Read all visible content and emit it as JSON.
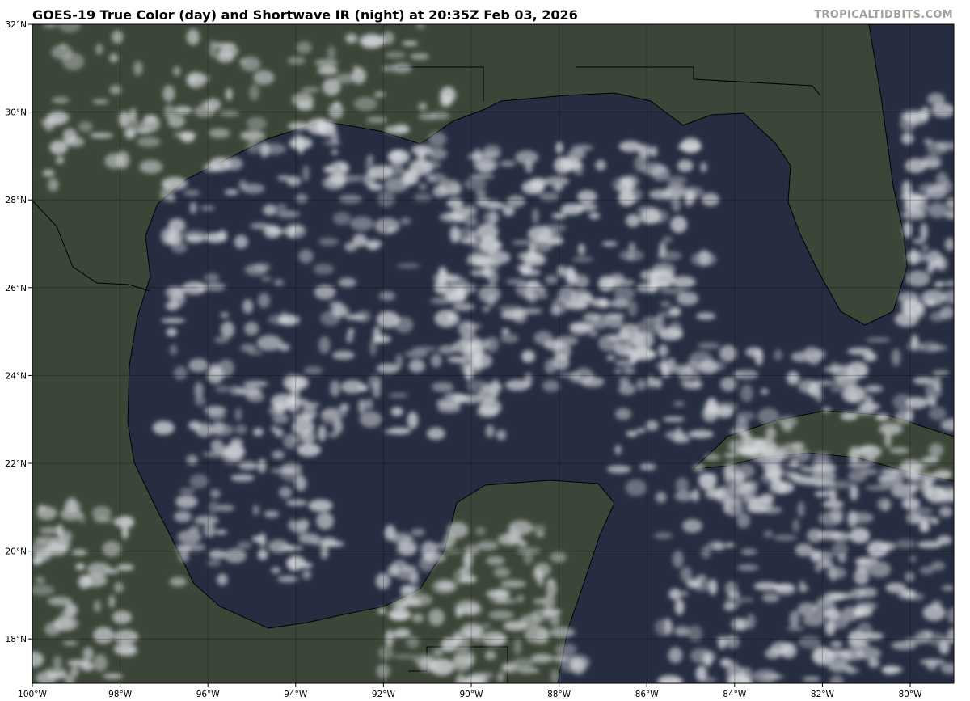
{
  "title": "GOES-19 True Color (day) and Shortwave IR (night) at 20:35Z Feb 03, 2026",
  "watermark": "TROPICALTIDBITS.COM",
  "map": {
    "projection": "plate-carree",
    "lon_range": [
      -100,
      -79
    ],
    "lat_range": [
      17,
      32
    ],
    "lon_ticks": [
      {
        "value": -100,
        "label": "100°W"
      },
      {
        "value": -98,
        "label": "98°W"
      },
      {
        "value": -96,
        "label": "96°W"
      },
      {
        "value": -94,
        "label": "94°W"
      },
      {
        "value": -92,
        "label": "92°W"
      },
      {
        "value": -90,
        "label": "90°W"
      },
      {
        "value": -88,
        "label": "88°W"
      },
      {
        "value": -86,
        "label": "86°W"
      },
      {
        "value": -84,
        "label": "84°W"
      },
      {
        "value": -82,
        "label": "82°W"
      },
      {
        "value": -80,
        "label": "80°W"
      }
    ],
    "lat_ticks": [
      {
        "value": 32,
        "label": "32°N"
      },
      {
        "value": 30,
        "label": "30°N"
      },
      {
        "value": 28,
        "label": "28°N"
      },
      {
        "value": 26,
        "label": "26°N"
      },
      {
        "value": 24,
        "label": "24°N"
      },
      {
        "value": 22,
        "label": "22°N"
      },
      {
        "value": 20,
        "label": "20°N"
      },
      {
        "value": 18,
        "label": "18°N"
      }
    ],
    "gridlines": true,
    "colors": {
      "ocean": "#262d40",
      "land": "#3b4638",
      "cloud": "#d8dade",
      "coast": "#000000"
    }
  }
}
